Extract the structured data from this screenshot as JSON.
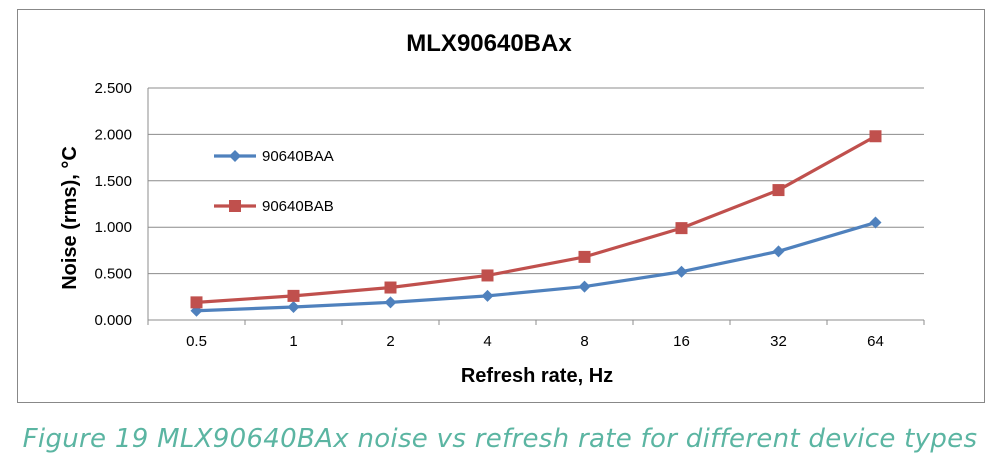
{
  "chart_data": {
    "type": "line",
    "title": "MLX90640BAx",
    "xlabel": "Refresh rate, Hz",
    "ylabel": "Noise (rms), °C",
    "categories": [
      "0.5",
      "1",
      "2",
      "4",
      "8",
      "16",
      "32",
      "64"
    ],
    "yticks": [
      "0.000",
      "0.500",
      "1.000",
      "1.500",
      "2.000",
      "2.500"
    ],
    "ylim": [
      0,
      2.5
    ],
    "grid": "horizontal",
    "legend_position": "left",
    "series": [
      {
        "name": "90640BAA",
        "color": "#4F81BD",
        "marker": "diamond",
        "values": [
          0.1,
          0.14,
          0.19,
          0.26,
          0.36,
          0.52,
          0.74,
          1.05
        ]
      },
      {
        "name": "90640BAB",
        "color": "#C0504D",
        "marker": "square",
        "values": [
          0.19,
          0.26,
          0.35,
          0.48,
          0.68,
          0.99,
          1.4,
          1.98
        ]
      }
    ]
  },
  "caption": {
    "text": "Figure 19 MLX90640BAx noise vs refresh rate for different device types",
    "color": "#5BB5A2"
  }
}
